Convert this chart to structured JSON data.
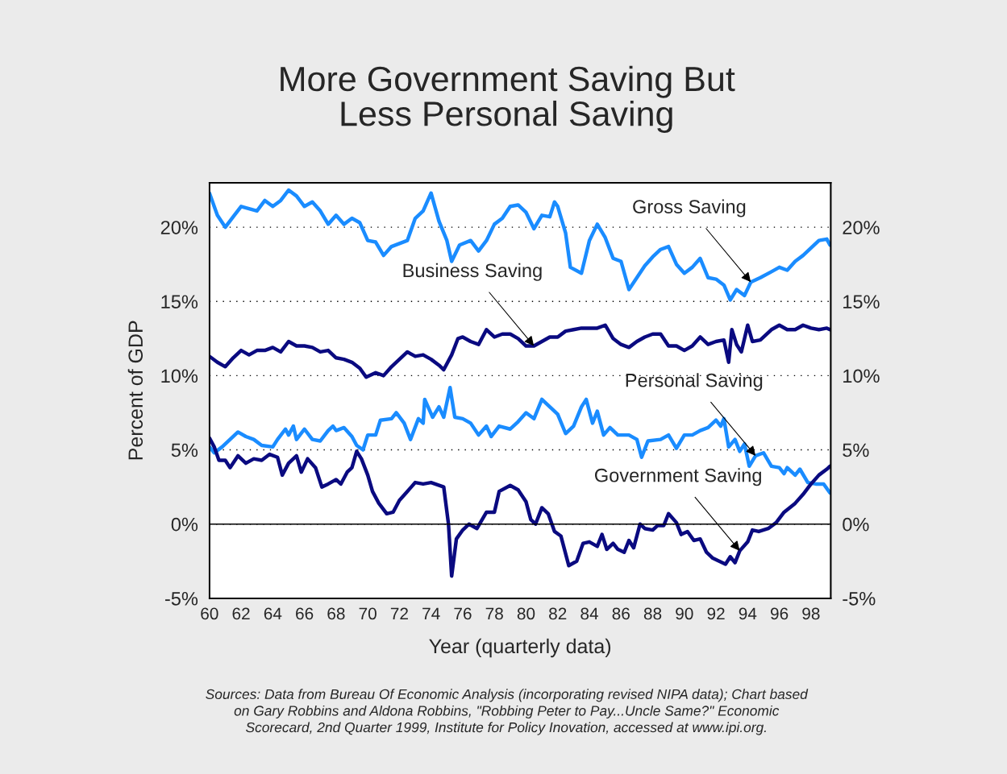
{
  "chart_data": {
    "type": "line",
    "title": "More Government Saving But\nLess Personal Saving",
    "xlabel": "Year (quarterly data)",
    "ylabel": "Percent of GDP",
    "xlim": [
      60,
      99.25
    ],
    "xticks": [
      60,
      62,
      64,
      66,
      68,
      70,
      72,
      74,
      76,
      78,
      80,
      82,
      84,
      86,
      88,
      90,
      92,
      94,
      96,
      98
    ],
    "ylim": [
      -5,
      23
    ],
    "yticks": [
      {
        "value": -5,
        "label": "-5%"
      },
      {
        "value": 0,
        "label": "0%"
      },
      {
        "value": 5,
        "label": "5%"
      },
      {
        "value": 10,
        "label": "10%"
      },
      {
        "value": 15,
        "label": "15%"
      },
      {
        "value": 20,
        "label": "20%"
      }
    ],
    "y2lim": [
      -5,
      23
    ],
    "y2ticks": [
      {
        "value": -5,
        "label": "-5%"
      },
      {
        "value": 0,
        "label": "0%"
      },
      {
        "value": 5,
        "label": "5%"
      },
      {
        "value": 10,
        "label": "10%"
      },
      {
        "value": 15,
        "label": "15%"
      },
      {
        "value": 20,
        "label": "20%"
      }
    ],
    "grid": "y",
    "line_style": "solid",
    "marker": "none",
    "ref_lines": [
      {
        "axis": "y",
        "value": 0,
        "color": "#000000",
        "line_style": "solid"
      }
    ],
    "series": [
      {
        "color": "#1a8cff",
        "x": [
          60,
          60.5,
          61,
          61.5,
          62,
          63,
          63.5,
          64,
          64.5,
          65,
          65.5,
          66,
          66.5,
          67,
          67.5,
          68,
          68.5,
          69,
          69.5,
          70,
          70.5,
          71,
          71.5,
          72,
          72.5,
          73,
          73.5,
          74,
          74.5,
          75,
          75.3,
          75.8,
          76.5,
          77,
          77.5,
          78,
          78.5,
          79,
          79.5,
          80,
          80.5,
          81,
          81.5,
          81.8,
          82,
          82.5,
          82.8,
          83.5,
          84,
          84.5,
          85,
          85.5,
          86,
          86.5,
          87,
          87.5,
          88,
          88.5,
          89,
          89.5,
          90,
          90.5,
          91,
          91.5,
          92,
          92.5,
          92.9,
          93.3,
          93.8,
          94.2,
          94.8,
          95.5,
          96,
          96.5,
          97,
          97.5,
          98,
          98.5,
          99,
          99.2
        ],
        "values": [
          22.3,
          20.8,
          20.0,
          20.7,
          21.4,
          21.1,
          21.8,
          21.4,
          21.8,
          22.5,
          22.1,
          21.4,
          21.7,
          21.1,
          20.2,
          20.8,
          20.2,
          20.6,
          20.3,
          19.1,
          19.0,
          18.1,
          18.7,
          18.9,
          19.1,
          20.6,
          21.1,
          22.3,
          20.4,
          19.1,
          17.7,
          18.8,
          19.1,
          18.4,
          19.1,
          20.2,
          20.6,
          21.4,
          21.5,
          21.0,
          19.9,
          20.8,
          20.7,
          21.7,
          21.4,
          19.6,
          17.3,
          16.9,
          19.1,
          20.2,
          19.3,
          17.9,
          17.7,
          15.8,
          16.6,
          17.4,
          18.0,
          18.5,
          18.7,
          17.5,
          16.9,
          17.3,
          17.9,
          16.6,
          16.5,
          16.1,
          15.1,
          15.8,
          15.4,
          16.3,
          16.6,
          17.0,
          17.3,
          17.1,
          17.7,
          18.1,
          18.6,
          19.1,
          19.2,
          18.8
        ]
      },
      {
        "color": "#0a0a80",
        "x": [
          60,
          60.5,
          61,
          61.5,
          62,
          62.5,
          63,
          63.5,
          64,
          64.5,
          65,
          65.5,
          66,
          66.5,
          67,
          67.5,
          68,
          68.5,
          69,
          69.5,
          69.9,
          70.5,
          71,
          71.5,
          72,
          72.5,
          73,
          73.5,
          74,
          74.5,
          74.8,
          75.3,
          75.7,
          76,
          76.5,
          77,
          77.5,
          78,
          78.5,
          79,
          79.5,
          80,
          80.5,
          81,
          81.5,
          82,
          82.5,
          83,
          83.5,
          84,
          84.5,
          85,
          85.5,
          86,
          86.5,
          87,
          87.5,
          88,
          88.5,
          89,
          89.5,
          90,
          90.5,
          91,
          91.5,
          92,
          92.5,
          92.8,
          93,
          93.3,
          93.6,
          94,
          94.3,
          94.8,
          95.5,
          96,
          96.5,
          97,
          97.5,
          98,
          98.5,
          99,
          99.2
        ],
        "values": [
          11.3,
          10.9,
          10.6,
          11.2,
          11.7,
          11.4,
          11.7,
          11.7,
          11.9,
          11.6,
          12.3,
          12.0,
          12.0,
          11.9,
          11.6,
          11.7,
          11.2,
          11.1,
          10.9,
          10.5,
          9.9,
          10.2,
          10.0,
          10.6,
          11.1,
          11.6,
          11.3,
          11.4,
          11.1,
          10.7,
          10.4,
          11.4,
          12.5,
          12.6,
          12.3,
          12.1,
          13.1,
          12.6,
          12.8,
          12.8,
          12.5,
          12.0,
          12.0,
          12.3,
          12.6,
          12.6,
          13.0,
          13.1,
          13.2,
          13.2,
          13.2,
          13.4,
          12.5,
          12.1,
          11.9,
          12.3,
          12.6,
          12.8,
          12.8,
          12.0,
          12.0,
          11.7,
          12.0,
          12.6,
          12.1,
          12.3,
          12.4,
          10.9,
          13.1,
          12.1,
          11.6,
          13.4,
          12.3,
          12.4,
          13.1,
          13.4,
          13.1,
          13.1,
          13.4,
          13.2,
          13.1,
          13.2,
          13.1
        ]
      },
      {
        "color": "#1a8cff",
        "x": [
          60,
          60.3,
          60.8,
          61.3,
          61.8,
          62.3,
          62.8,
          63.3,
          64,
          64.3,
          64.8,
          65,
          65.3,
          65.5,
          66,
          66.5,
          67,
          67.5,
          67.8,
          68,
          68.5,
          69,
          69.3,
          69.7,
          70,
          70.5,
          70.8,
          71.5,
          71.8,
          72.3,
          72.7,
          73.2,
          73.5,
          73.6,
          74.1,
          74.5,
          74.8,
          75.2,
          75.5,
          76,
          76.5,
          77,
          77.5,
          77.8,
          78.3,
          79,
          79.5,
          80,
          80.5,
          81,
          81.5,
          82,
          82.5,
          83,
          83.5,
          83.8,
          84.2,
          84.5,
          84.9,
          85.3,
          85.8,
          86.5,
          87,
          87.3,
          87.7,
          88.5,
          89,
          89.5,
          90,
          90.5,
          91,
          91.5,
          92,
          92.3,
          92.5,
          92.8,
          93.2,
          93.5,
          93.8,
          94.1,
          94.5,
          95,
          95.5,
          96,
          96.3,
          96.5,
          97,
          97.3,
          97.8,
          98.3,
          98.8,
          99.2
        ],
        "values": [
          5.2,
          4.8,
          5.2,
          5.7,
          6.2,
          5.9,
          5.7,
          5.3,
          5.2,
          5.7,
          6.4,
          6.0,
          6.6,
          5.7,
          6.4,
          5.7,
          5.6,
          6.3,
          6.6,
          6.3,
          6.5,
          5.9,
          5.3,
          5.0,
          6.0,
          6.0,
          7.0,
          7.1,
          7.5,
          6.8,
          5.7,
          7.1,
          6.8,
          8.4,
          7.2,
          7.9,
          7.2,
          9.2,
          7.2,
          7.1,
          6.8,
          6.0,
          6.6,
          5.9,
          6.6,
          6.4,
          6.9,
          7.5,
          7.1,
          8.4,
          7.9,
          7.4,
          6.1,
          6.6,
          7.9,
          8.4,
          6.8,
          7.6,
          6.0,
          6.5,
          6.0,
          6.0,
          5.7,
          4.5,
          5.6,
          5.7,
          6.0,
          5.1,
          6.0,
          6.0,
          6.3,
          6.5,
          7.0,
          6.6,
          7.1,
          5.2,
          5.7,
          4.9,
          5.4,
          3.9,
          4.6,
          4.8,
          3.9,
          3.8,
          3.4,
          3.8,
          3.3,
          3.7,
          2.8,
          2.7,
          2.7,
          2.1
        ]
      },
      {
        "color": "#0a0a80",
        "x": [
          60,
          60.3,
          60.6,
          61,
          61.3,
          61.8,
          62.3,
          62.8,
          63.3,
          63.8,
          64.3,
          64.6,
          65,
          65.5,
          65.8,
          66.2,
          66.7,
          67.1,
          67.5,
          68,
          68.3,
          68.7,
          69,
          69.3,
          69.6,
          70,
          70.3,
          70.7,
          71.2,
          71.6,
          72,
          72.5,
          73,
          73.5,
          74,
          74.8,
          75.1,
          75.3,
          75.6,
          76,
          76.4,
          76.9,
          77.5,
          78,
          78.3,
          79,
          79.5,
          80,
          80.3,
          80.6,
          81,
          81.4,
          81.8,
          82.2,
          82.7,
          83.2,
          83.6,
          84,
          84.5,
          84.8,
          85.1,
          85.5,
          85.8,
          86.2,
          86.5,
          86.8,
          87.2,
          87.5,
          88,
          88.3,
          88.7,
          89,
          89.5,
          89.8,
          90.2,
          90.6,
          91,
          91.4,
          91.8,
          92.2,
          92.6,
          92.9,
          93.2,
          93.5,
          94,
          94.3,
          94.7,
          95.3,
          95.8,
          96.3,
          97,
          97.5,
          98,
          98.5,
          99,
          99.2
        ],
        "values": [
          5.8,
          5.2,
          4.3,
          4.3,
          3.8,
          4.6,
          4.1,
          4.4,
          4.3,
          4.7,
          4.5,
          3.3,
          4.1,
          4.6,
          3.5,
          4.4,
          3.8,
          2.5,
          2.7,
          3.0,
          2.7,
          3.5,
          3.8,
          4.9,
          4.4,
          3.3,
          2.2,
          1.4,
          0.7,
          0.8,
          1.6,
          2.2,
          2.8,
          2.7,
          2.8,
          2.5,
          0.0,
          -3.5,
          -1.0,
          -0.4,
          0.0,
          -0.3,
          0.8,
          0.8,
          2.2,
          2.6,
          2.3,
          1.5,
          0.3,
          0.0,
          1.1,
          0.7,
          -0.5,
          -0.8,
          -2.8,
          -2.5,
          -1.3,
          -1.2,
          -1.5,
          -0.7,
          -1.7,
          -1.3,
          -1.7,
          -1.9,
          -1.1,
          -1.6,
          0.0,
          -0.3,
          -0.4,
          -0.1,
          -0.1,
          0.7,
          0.1,
          -0.7,
          -0.5,
          -1.1,
          -1.0,
          -1.9,
          -2.3,
          -2.5,
          -2.7,
          -2.2,
          -2.6,
          -1.8,
          -1.2,
          -0.4,
          -0.5,
          -0.3,
          0.1,
          0.8,
          1.4,
          2.0,
          2.7,
          3.3,
          3.7,
          3.9
        ]
      }
    ],
    "annotations": [
      {
        "text": "Gross Saving",
        "x": 94.2,
        "y": 16.3
      },
      {
        "text": "Business Saving",
        "x": 80.5,
        "y": 12.0
      },
      {
        "text": "Personal Saving",
        "x": 94.5,
        "y": 4.6
      },
      {
        "text": "Government Saving",
        "x": 93.5,
        "y": -1.8
      },
      "Sources: Data from Bureau Of Economic Analysis (incorporating revised NIPA data); Chart based\non Gary Robbins and Aldona Robbins, \"Robbing Peter to Pay...Uncle Same?\" Economic\nScorecard, 2nd Quarter 1999, Institute for Policy Inovation, accessed at www.ipi.org."
    ]
  }
}
